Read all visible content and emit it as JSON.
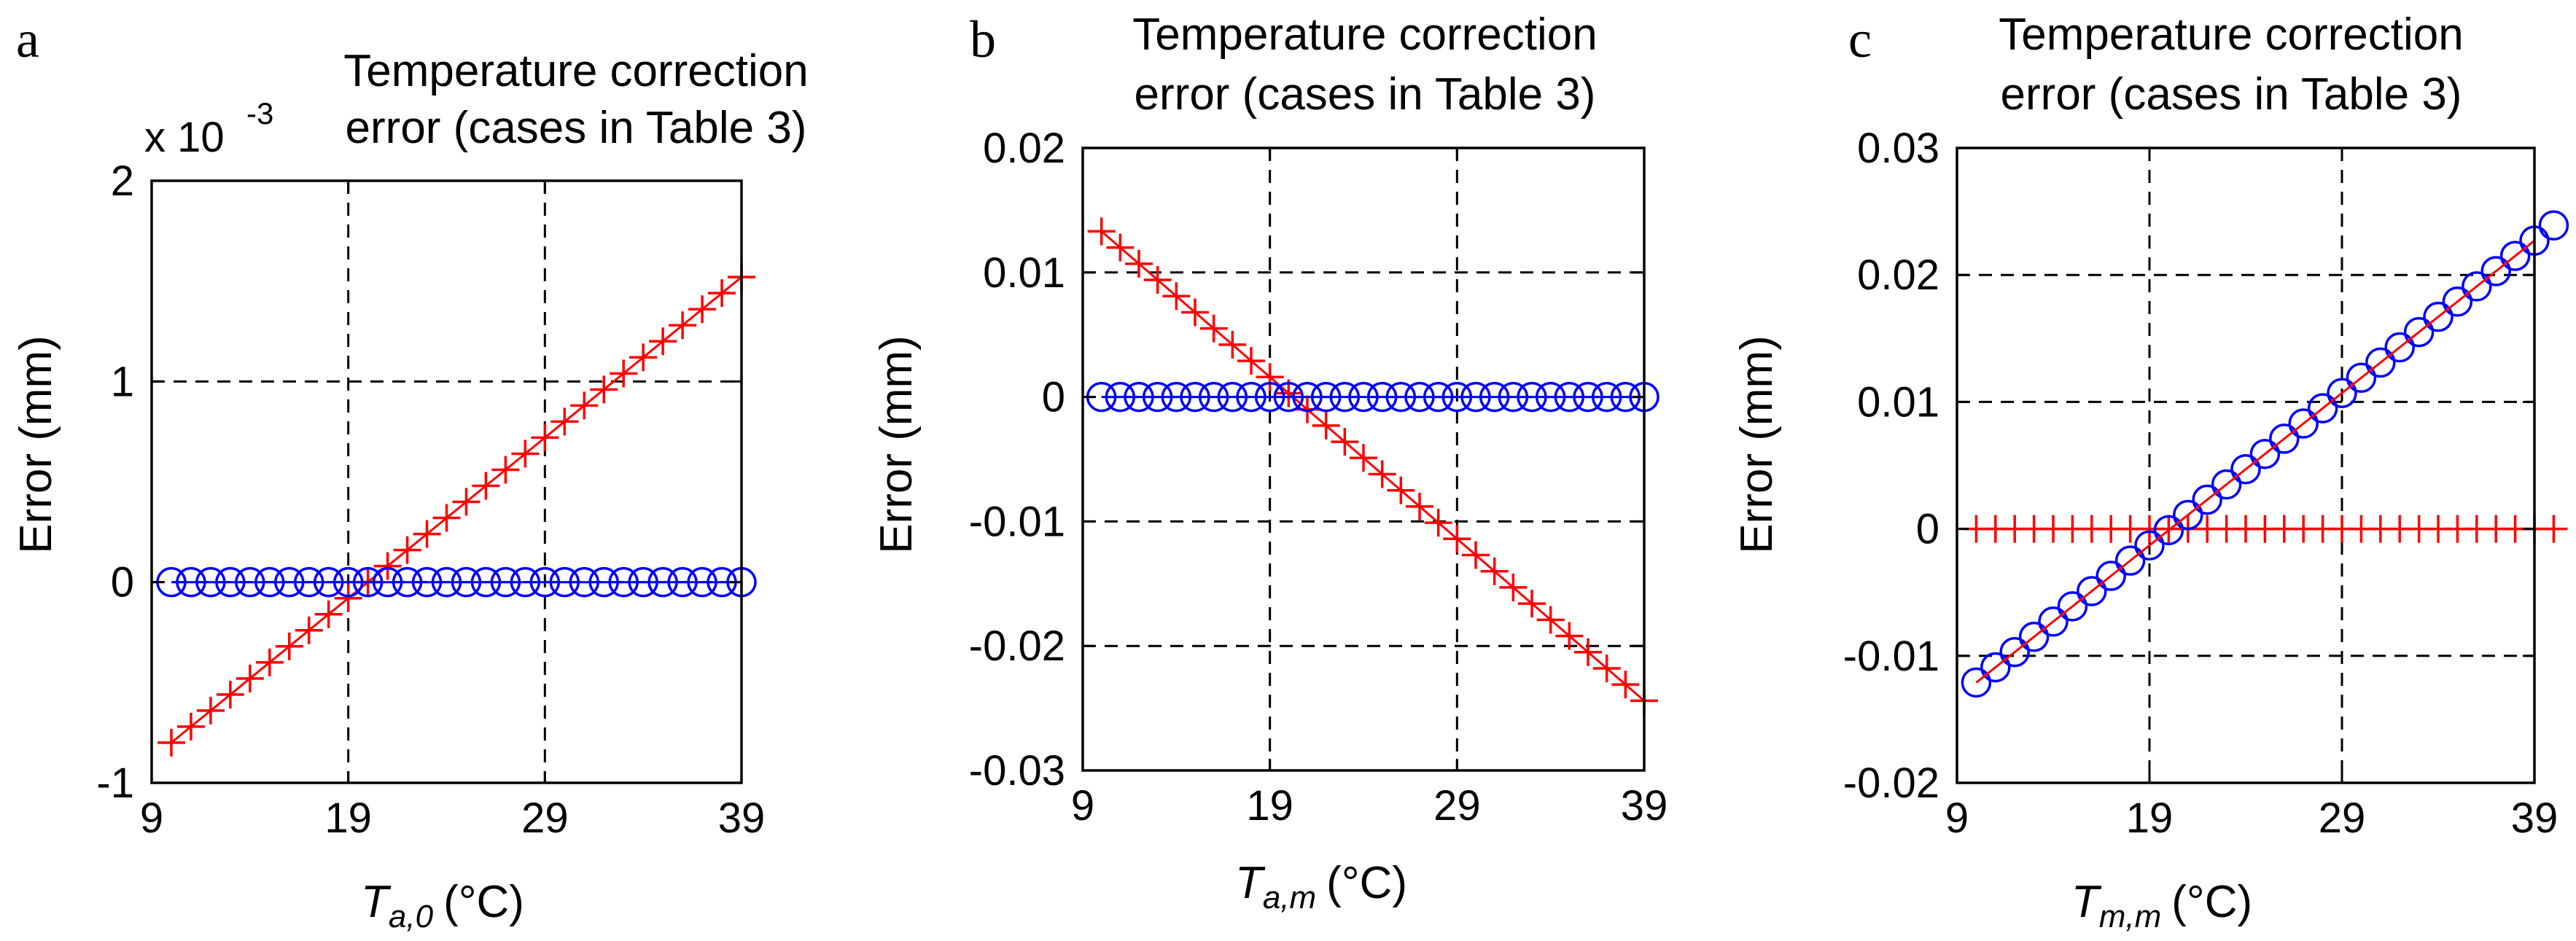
{
  "figure": {
    "panels": [
      {
        "letter": "a",
        "title": [
          "Temperature correction",
          "error (cases in Table 3)"
        ],
        "xlabel": {
          "main": "T",
          "sub": "a,0",
          "unit": "(°C)"
        },
        "ylabel": "Error (mm)",
        "exponent": {
          "base": "x 10",
          "power": "-3"
        }
      },
      {
        "letter": "b",
        "title": [
          "Temperature correction",
          "error (cases in Table 3)"
        ],
        "xlabel": {
          "main": "T",
          "sub": "a,m",
          "unit": "(°C)"
        },
        "ylabel": "Error (mm)"
      },
      {
        "letter": "c",
        "title": [
          "Temperature correction",
          "error (cases in Table 3)"
        ],
        "xlabel": {
          "main": "T",
          "sub": "m,m",
          "unit": "(°C)"
        },
        "ylabel": "Error (mm)"
      }
    ]
  },
  "colors": {
    "red": "#ff0000",
    "blue": "#0000ff",
    "axis": "#000000"
  },
  "chart_data": [
    {
      "type": "line",
      "title": "Temperature correction error (cases in Table 3)",
      "xlabel": "T_a,0 (°C)",
      "ylabel": "Error (mm)",
      "xlim": [
        9,
        39
      ],
      "ylim": [
        -1,
        2
      ],
      "y_scale_note": "x 10^-3",
      "xticks": [
        9,
        19,
        29,
        39
      ],
      "xtick_labels": [
        "9",
        "19",
        "29",
        "39"
      ],
      "yticks": [
        -1,
        0,
        1,
        2
      ],
      "ytick_labels": [
        "-1",
        "0",
        "1",
        "2"
      ],
      "grid": true,
      "series": [
        {
          "name": "red-plus",
          "color": "red",
          "marker": "+",
          "line": true,
          "x_start": 10,
          "x_step": 1,
          "values": [
            -0.8,
            -0.72,
            -0.64,
            -0.56,
            -0.48,
            -0.4,
            -0.32,
            -0.24,
            -0.16,
            -0.08,
            0.0,
            0.08,
            0.16,
            0.24,
            0.32,
            0.4,
            0.48,
            0.56,
            0.64,
            0.72,
            0.8,
            0.88,
            0.96,
            1.04,
            1.12,
            1.2,
            1.28,
            1.36,
            1.44,
            1.52
          ]
        },
        {
          "name": "blue-circle",
          "color": "blue",
          "marker": "o",
          "line": true,
          "x_start": 10,
          "x_step": 1,
          "values": [
            0,
            0,
            0,
            0,
            0,
            0,
            0,
            0,
            0,
            0,
            0,
            0,
            0,
            0,
            0,
            0,
            0,
            0,
            0,
            0,
            0,
            0,
            0,
            0,
            0,
            0,
            0,
            0,
            0,
            0
          ]
        }
      ]
    },
    {
      "type": "line",
      "title": "Temperature correction error (cases in Table 3)",
      "xlabel": "T_a,m (°C)",
      "ylabel": "Error (mm)",
      "xlim": [
        9,
        39
      ],
      "ylim": [
        -0.03,
        0.02
      ],
      "xticks": [
        9,
        19,
        29,
        39
      ],
      "xtick_labels": [
        "9",
        "19",
        "29",
        "39"
      ],
      "yticks": [
        -0.03,
        -0.02,
        -0.01,
        0,
        0.01,
        0.02
      ],
      "ytick_labels": [
        "-0.03",
        "-0.02",
        "-0.01",
        "0",
        "0.01",
        "0.02"
      ],
      "grid": true,
      "series": [
        {
          "name": "red-plus",
          "color": "red",
          "marker": "+",
          "line": true,
          "x_start": 10,
          "x_step": 1,
          "values": [
            0.0133,
            0.012,
            0.0107,
            0.0094,
            0.0081,
            0.0068,
            0.0055,
            0.0042,
            0.0029,
            0.0016,
            0.0003,
            -0.001,
            -0.0023,
            -0.0036,
            -0.0049,
            -0.0062,
            -0.0075,
            -0.0088,
            -0.0101,
            -0.0114,
            -0.0127,
            -0.014,
            -0.0153,
            -0.0166,
            -0.0179,
            -0.0192,
            -0.0205,
            -0.0218,
            -0.0231,
            -0.0244
          ]
        },
        {
          "name": "blue-circle",
          "color": "blue",
          "marker": "o",
          "line": true,
          "x_start": 10,
          "x_step": 1,
          "values": [
            0,
            0,
            0,
            0,
            0,
            0,
            0,
            0,
            0,
            0,
            0,
            0,
            0,
            0,
            0,
            0,
            0,
            0,
            0,
            0,
            0,
            0,
            0,
            0,
            0,
            0,
            0,
            0,
            0,
            0
          ]
        }
      ]
    },
    {
      "type": "line",
      "title": "Temperature correction error (cases in Table 3)",
      "xlabel": "T_m,m (°C)",
      "ylabel": "Error (mm)",
      "xlim": [
        9,
        39
      ],
      "ylim": [
        -0.02,
        0.03
      ],
      "xticks": [
        9,
        19,
        29,
        39
      ],
      "xtick_labels": [
        "9",
        "19",
        "29",
        "39"
      ],
      "yticks": [
        -0.02,
        -0.01,
        0,
        0.01,
        0.02,
        0.03
      ],
      "ytick_labels": [
        "-0.02",
        "-0.01",
        "0",
        "0.01",
        "0.02",
        "0.03"
      ],
      "grid": true,
      "series": [
        {
          "name": "red-plus",
          "color": "red",
          "marker": "+",
          "line": true,
          "x_start": 10,
          "x_step": 1,
          "values": [
            0,
            0,
            0,
            0,
            0,
            0,
            0,
            0,
            0,
            0,
            0,
            0,
            0,
            0,
            0,
            0,
            0,
            0,
            0,
            0,
            0,
            0,
            0,
            0,
            0,
            0,
            0,
            0,
            0,
            0,
            0
          ],
          "x_end_extra": 39.5
        },
        {
          "name": "blue-circle",
          "color": "blue",
          "marker": "o",
          "line": false,
          "x_start": 10,
          "x_step": 1,
          "values": [
            -0.0121,
            -0.0109,
            -0.0097,
            -0.0085,
            -0.0073,
            -0.0061,
            -0.0049,
            -0.0037,
            -0.0025,
            -0.0013,
            -0.0001,
            0.0011,
            0.0023,
            0.0035,
            0.0047,
            0.0059,
            0.0071,
            0.0083,
            0.0095,
            0.0107,
            0.0119,
            0.0131,
            0.0143,
            0.0155,
            0.0167,
            0.0179,
            0.0191,
            0.0203,
            0.0215,
            0.0227,
            0.0239
          ]
        },
        {
          "name": "red-fit-line",
          "color": "red",
          "marker": "none",
          "line": true,
          "x_start": 10,
          "x_step": 29,
          "values": [
            -0.0121,
            0.0227
          ]
        }
      ]
    }
  ]
}
